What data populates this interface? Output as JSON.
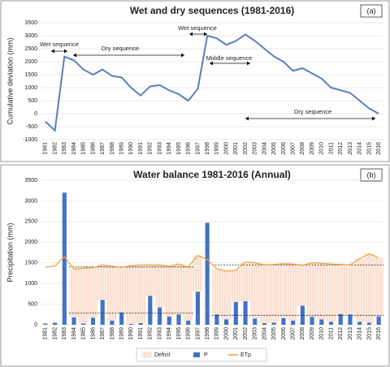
{
  "chart_data": [
    {
      "type": "line",
      "title": "Wet and dry sequences (1981-2016)",
      "panel_label": "(a)",
      "ylabel": "Cumulative deviation (mm)",
      "categories": [
        "1981",
        "1982",
        "1983",
        "1984",
        "1985",
        "1986",
        "1987",
        "1988",
        "1989",
        "1990",
        "1991",
        "1992",
        "1993",
        "1994",
        "1995",
        "1996",
        "1997",
        "1998",
        "1999",
        "2000",
        "2001",
        "2002",
        "2003",
        "2004",
        "2005",
        "2006",
        "2007",
        "2008",
        "2009",
        "2010",
        "2011",
        "2012",
        "2013",
        "2014",
        "2015",
        "2016"
      ],
      "series": [
        {
          "name": "Cumulative deviation",
          "color": "#5b7fb8",
          "values": [
            -300,
            -650,
            2200,
            2050,
            1700,
            1500,
            1700,
            1450,
            1400,
            1000,
            700,
            1050,
            1100,
            900,
            750,
            500,
            950,
            3000,
            2900,
            2650,
            2800,
            3050,
            2800,
            2500,
            2200,
            2000,
            1650,
            1750,
            1550,
            1350,
            1000,
            900,
            800,
            500,
            200,
            0
          ]
        }
      ],
      "ylim": [
        -1000,
        3500
      ],
      "yticks": [
        -1000,
        -500,
        0,
        500,
        1000,
        1500,
        2000,
        2500,
        3000,
        3500
      ],
      "annotations": [
        {
          "text": "Wet sequence",
          "color": "#3aa03a"
        },
        {
          "text": "Dry sequence",
          "color": "#e02020"
        },
        {
          "text": "Wet sequence",
          "color": "#3aa03a"
        },
        {
          "text": "Middle sequence",
          "color": "#111111"
        },
        {
          "text": "Dry sequence",
          "color": "#e02020"
        }
      ]
    },
    {
      "type": "bar_line",
      "title": "Water balance 1981-2016 (Annual)",
      "panel_label": "(b)",
      "ylabel": "Precipitation (mm)",
      "categories": [
        "1981",
        "1982",
        "1983",
        "1984",
        "1985",
        "1986",
        "1987",
        "1988",
        "1989",
        "1990",
        "1991",
        "1992",
        "1993",
        "1994",
        "1995",
        "1996",
        "1997",
        "1998",
        "1999",
        "2000",
        "2001",
        "2002",
        "2003",
        "2004",
        "2005",
        "2006",
        "2007",
        "2008",
        "2009",
        "2010",
        "2011",
        "2012",
        "2013",
        "2014",
        "2015",
        "2016"
      ],
      "deficit": {
        "name": "Deficit",
        "color": "#f9d9c8",
        "ranges": [
          [
            "1984",
            "1997"
          ],
          [
            "1999",
            "2016"
          ]
        ]
      },
      "series": [
        {
          "name": "P",
          "color": "#4472c4",
          "kind": "bar",
          "values": [
            30,
            50,
            3200,
            180,
            30,
            170,
            600,
            100,
            300,
            20,
            40,
            700,
            420,
            200,
            250,
            100,
            800,
            2470,
            250,
            130,
            550,
            570,
            150,
            40,
            50,
            160,
            100,
            460,
            190,
            130,
            70,
            260,
            250,
            70,
            50,
            200
          ]
        },
        {
          "name": "ETp",
          "color": "#f0a030",
          "kind": "line",
          "values": [
            1400,
            1420,
            1650,
            1350,
            1370,
            1380,
            1450,
            1420,
            1390,
            1430,
            1450,
            1450,
            1450,
            1420,
            1470,
            1400,
            1680,
            1580,
            1350,
            1300,
            1320,
            1520,
            1500,
            1450,
            1460,
            1480,
            1470,
            1440,
            1500,
            1490,
            1470,
            1460,
            1450,
            1600,
            1720,
            1620
          ]
        }
      ],
      "reference_lines": [
        {
          "x": [
            "1984",
            "1996"
          ],
          "y": 1400
        },
        {
          "x": [
            "1984",
            "1996"
          ],
          "y": 280
        },
        {
          "x": [
            "1999",
            "2016"
          ],
          "y": 1450
        },
        {
          "x": [
            "1999",
            "2016"
          ],
          "y": 230
        }
      ],
      "ylim": [
        0,
        3500
      ],
      "yticks": [
        0,
        500,
        1000,
        1500,
        2000,
        2500,
        3000,
        3500
      ],
      "legend": "bottom"
    }
  ]
}
